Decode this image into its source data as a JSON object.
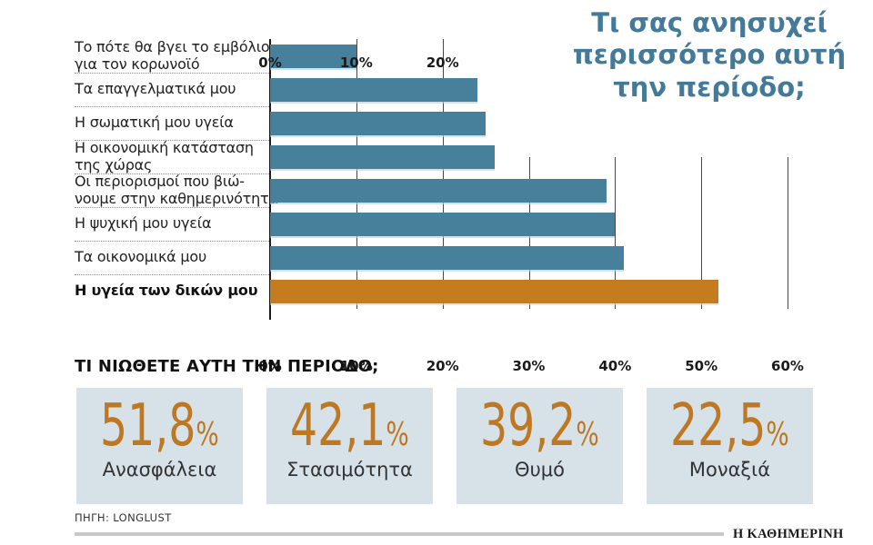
{
  "chart": {
    "title": "Τι σας ανησυχεί περισσότερο αυτή την περίοδο;"
  },
  "chart_data": {
    "type": "bar",
    "orientation": "horizontal",
    "title": "Τι σας ανησυχεί περισσότερο αυτή την περίοδο;",
    "categories": [
      "Το πότε θα βγει το εμβόλιο\nγια τον κορωνοϊό",
      "Τα επαγγελματικά μου",
      "Η σωματική μου υγεία",
      "Η οικονομική κατάσταση\nτης χώρας",
      "Οι περιορισμοί που βιώ-\nνουμε στην καθημερινότητα",
      "Η ψυχική μου υγεία",
      "Τα οικονομικά μου",
      "Η υγεία των δικών μου"
    ],
    "values": [
      10,
      24,
      25,
      26,
      39,
      40,
      41,
      52
    ],
    "unit": "%",
    "xlim": [
      0,
      60
    ],
    "grid": true,
    "top_axis_ticks": [
      0,
      10,
      20
    ],
    "bottom_axis_ticks": [
      0,
      10,
      20,
      30,
      40,
      50,
      60
    ],
    "highlight_index": 7
  },
  "feelings": {
    "heading": "ΤΙ ΝΙΩΘΕΤΕ ΑΥΤΗ ΤΗΝ ΠΕΡΙΟΔΟ;",
    "items": [
      {
        "value": "51,8",
        "unit": "%",
        "label": "Ανασφάλεια"
      },
      {
        "value": "42,1",
        "unit": "%",
        "label": "Στασιμότητα"
      },
      {
        "value": "39,2",
        "unit": "%",
        "label": "Θυμό"
      },
      {
        "value": "22,5",
        "unit": "%",
        "label": "Μοναξιά"
      }
    ]
  },
  "footer": {
    "source": "ΠΗΓΗ: LONGLUST",
    "brand": "Η ΚΑΘΗΜΕΡΙΝΗ"
  },
  "colors": {
    "bar_blue": "#47809A",
    "bar_orange": "#C57C1E",
    "title_blue": "#447A99",
    "box_bg": "#D6E1E8",
    "number_orange": "#BE7822"
  }
}
